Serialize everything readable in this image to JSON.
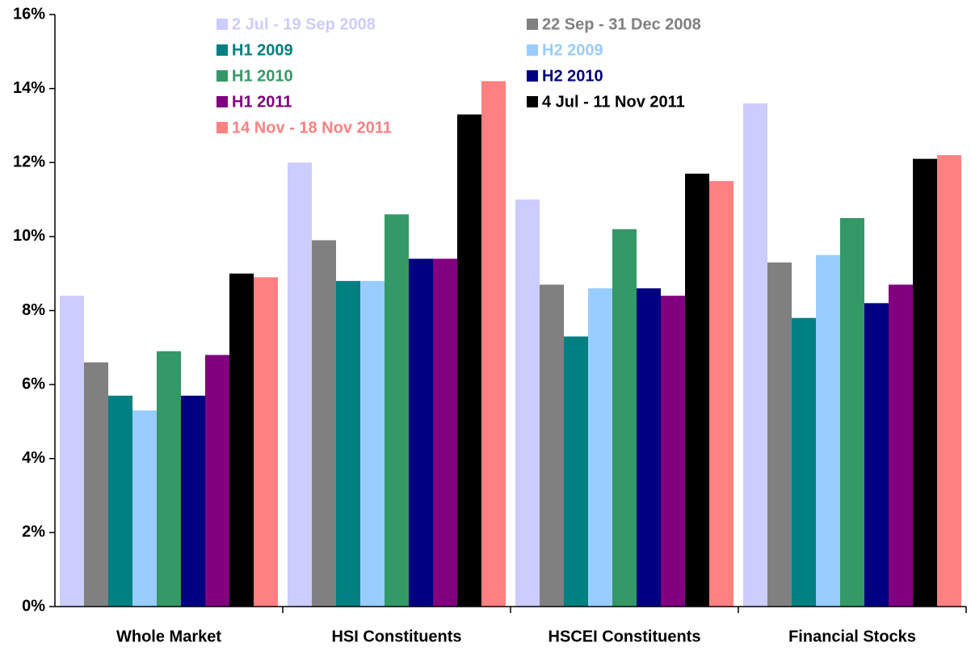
{
  "chart_data": {
    "type": "bar",
    "categories": [
      "Whole Market",
      "HSI Constituents",
      "HSCEI Constituents",
      "Financial Stocks"
    ],
    "series": [
      {
        "name": "2 Jul - 19 Sep 2008",
        "color": "#ccccff",
        "values": [
          8.4,
          12.0,
          11.0,
          13.6
        ]
      },
      {
        "name": "22 Sep - 31 Dec 2008",
        "color": "#808080",
        "values": [
          6.6,
          9.9,
          8.7,
          9.3
        ]
      },
      {
        "name": "H1 2009",
        "color": "#008080",
        "values": [
          5.7,
          8.8,
          7.3,
          7.8
        ]
      },
      {
        "name": "H2 2009",
        "color": "#99ccff",
        "values": [
          5.3,
          8.8,
          8.6,
          9.5
        ]
      },
      {
        "name": "H1 2010",
        "color": "#339966",
        "values": [
          6.9,
          10.6,
          10.2,
          10.5
        ]
      },
      {
        "name": "H2 2010",
        "color": "#000080",
        "values": [
          5.7,
          9.4,
          8.6,
          8.2
        ]
      },
      {
        "name": "H1 2011",
        "color": "#800080",
        "values": [
          6.8,
          9.4,
          8.4,
          8.7
        ]
      },
      {
        "name": "4 Jul - 11 Nov 2011",
        "color": "#000000",
        "values": [
          9.0,
          13.3,
          11.7,
          12.1
        ]
      },
      {
        "name": "14 Nov - 18 Nov 2011",
        "color": "#ff8080",
        "values": [
          8.9,
          14.2,
          11.5,
          12.2
        ]
      }
    ],
    "ylim": [
      0,
      16
    ],
    "yticks": [
      {
        "value": 0,
        "label": "0%"
      },
      {
        "value": 2,
        "label": "2%"
      },
      {
        "value": 4,
        "label": "4%"
      },
      {
        "value": 6,
        "label": "6%"
      },
      {
        "value": 8,
        "label": "8%"
      },
      {
        "value": 10,
        "label": "10%"
      },
      {
        "value": 12,
        "label": "12%"
      },
      {
        "value": 14,
        "label": "14%"
      },
      {
        "value": 16,
        "label": "16%"
      }
    ],
    "grid": false,
    "legend": "top"
  }
}
